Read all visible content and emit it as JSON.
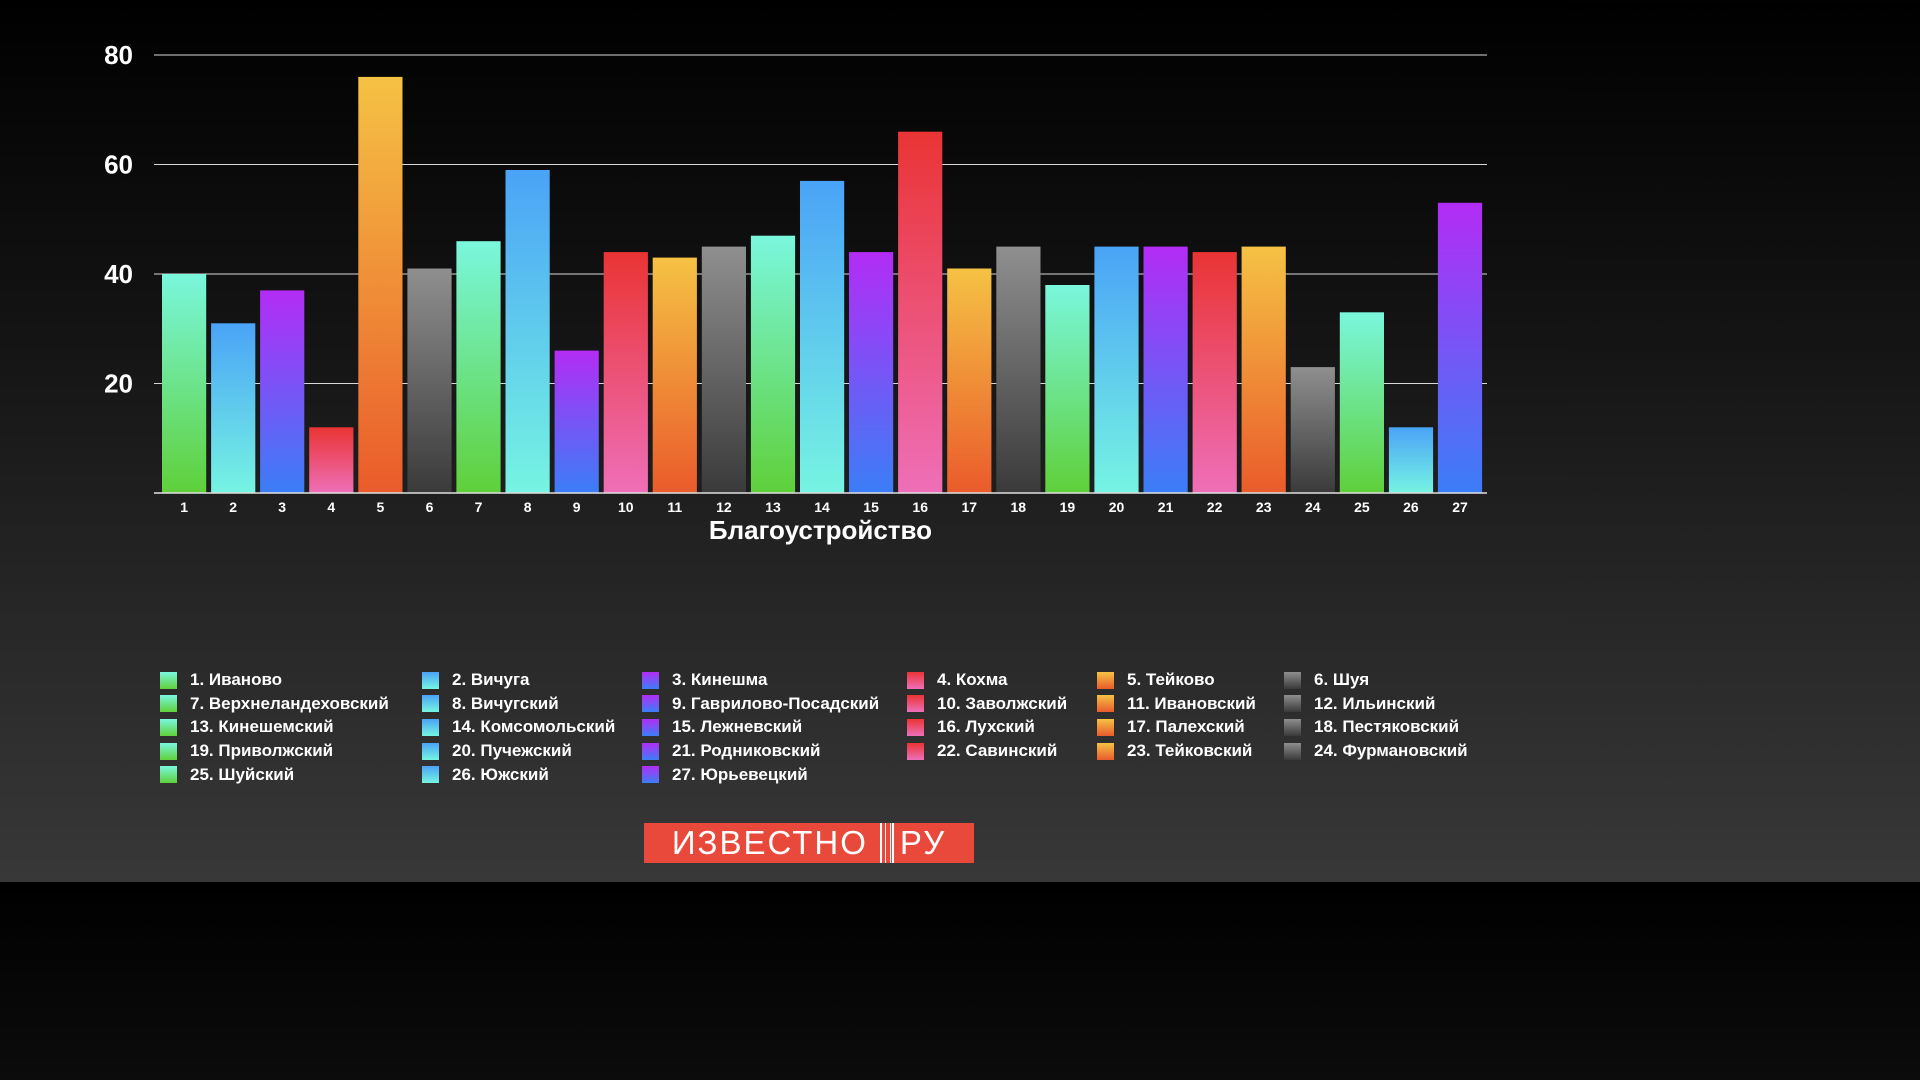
{
  "chart_data": {
    "type": "bar",
    "xlabel": "Благоустройство",
    "ylabel": "",
    "ylim": [
      0,
      80
    ],
    "yticks": [
      20,
      40,
      60,
      80
    ],
    "grid": true,
    "legend_placement": "bottom",
    "categories": [
      "1",
      "2",
      "3",
      "4",
      "5",
      "6",
      "7",
      "8",
      "9",
      "10",
      "11",
      "12",
      "13",
      "14",
      "15",
      "16",
      "17",
      "18",
      "19",
      "20",
      "21",
      "22",
      "23",
      "24",
      "25",
      "26",
      "27"
    ],
    "values": [
      40,
      31,
      37,
      12,
      76,
      41,
      46,
      59,
      26,
      44,
      43,
      45,
      47,
      57,
      44,
      66,
      41,
      45,
      38,
      45,
      45,
      44,
      45,
      23,
      33,
      12,
      53
    ],
    "bar_colors": [
      [
        "#7af7dd",
        "#5fd03a"
      ],
      [
        "#4aa3f7",
        "#76f4e2"
      ],
      [
        "#b32cf5",
        "#3b7ef7"
      ],
      [
        "#ea3434",
        "#ee6fb8"
      ],
      [
        "#f5c244",
        "#ea5b2b"
      ],
      [
        "#8f8f8f",
        "#3a3a3a"
      ],
      [
        "#7af7dd",
        "#5fd03a"
      ],
      [
        "#4aa3f7",
        "#76f4e2"
      ],
      [
        "#b32cf5",
        "#3b7ef7"
      ],
      [
        "#ea3434",
        "#ee6fb8"
      ],
      [
        "#f5c244",
        "#ea5b2b"
      ],
      [
        "#8f8f8f",
        "#3a3a3a"
      ],
      [
        "#7af7dd",
        "#5fd03a"
      ],
      [
        "#4aa3f7",
        "#76f4e2"
      ],
      [
        "#b32cf5",
        "#3b7ef7"
      ],
      [
        "#ea3434",
        "#ee6fb8"
      ],
      [
        "#f5c244",
        "#ea5b2b"
      ],
      [
        "#8f8f8f",
        "#3a3a3a"
      ],
      [
        "#7af7dd",
        "#5fd03a"
      ],
      [
        "#4aa3f7",
        "#76f4e2"
      ],
      [
        "#b32cf5",
        "#3b7ef7"
      ],
      [
        "#ea3434",
        "#ee6fb8"
      ],
      [
        "#f5c244",
        "#ea5b2b"
      ],
      [
        "#8f8f8f",
        "#3a3a3a"
      ],
      [
        "#7af7dd",
        "#5fd03a"
      ],
      [
        "#4aa3f7",
        "#76f4e2"
      ],
      [
        "#b32cf5",
        "#3b7ef7"
      ]
    ],
    "legend": [
      "1. Иваново",
      "2. Вичуга",
      "3. Кинешма",
      "4. Кохма",
      "5. Тейково",
      "6. Шуя",
      "7. Верхнеландеховский",
      "8. Вичугский",
      "9. Гаврилово-Посадский",
      "10. Заволжский",
      "11. Ивановский",
      "12. Ильинский",
      "13. Кинешемский",
      "14. Комсомольский",
      "15. Лежневский",
      "16. Лухский",
      "17. Палехский",
      "18. Пестяковский",
      "19. Приволжский",
      "20. Пучежский",
      "21. Родниковский",
      "22. Савинский",
      "23. Тейковский",
      "24. Фурмановский",
      "25. Шуйский",
      "26. Южский",
      "27. Юрьевецкий"
    ]
  },
  "logo": {
    "left": "ИЗВЕСТНО",
    "right": "РУ"
  }
}
